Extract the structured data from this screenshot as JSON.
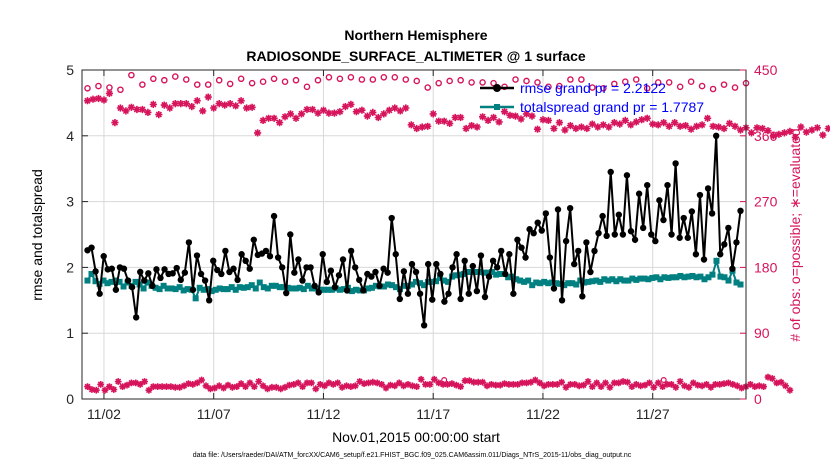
{
  "colors": {
    "rmse": "#000000",
    "spread": "#008080",
    "obs": "#d6145c",
    "legendText": "#0000ff",
    "grid": "#d8d8d8"
  },
  "chart_data": {
    "type": "line",
    "title_line1": "Northern Hemisphere",
    "title_line2": "RADIOSONDE_SURFACE_ALTIMETER @ 1 surface",
    "xlabel": "Nov.01,2015 00:00:00 start",
    "ylabel_left": "rmse and totalspread",
    "ylabel_right": "# of obs: o=possible; ∗=evaluated",
    "footnote": "data file: /Users/raeder/DAI/ATM_forcXX/CAM6_setup/f.e21.FHIST_BGC.f09_025.CAM6assim.011/Diags_NTrS_2015-11/obs_diag_output.nc",
    "x_range": [
      0.5,
      30.75
    ],
    "x_tick_values": [
      1.5,
      6.5,
      11.5,
      16.5,
      21.5,
      26.5
    ],
    "x_tick_labels": [
      "11/02",
      "11/07",
      "11/12",
      "11/17",
      "11/22",
      "11/27"
    ],
    "ylim_left": [
      0,
      5
    ],
    "y_ticks_left": [
      "0",
      "1",
      "2",
      "3",
      "4",
      "5"
    ],
    "ylim_right": [
      0,
      450
    ],
    "y_ticks_right": [
      "0",
      "90",
      "180",
      "270",
      "360",
      "450"
    ],
    "legend": {
      "rmse": "rmse grand pr = 2.2122",
      "spread": "totalspread grand pr = 1.7787"
    },
    "x_start": 0.75,
    "x_step": 0.25,
    "rmse": [
      2.26,
      2.3,
      1.94,
      1.6,
      2.17,
      1.97,
      1.98,
      1.66,
      2.0,
      1.98,
      1.8,
      1.7,
      1.24,
      1.93,
      1.8,
      1.91,
      1.72,
      1.97,
      1.84,
      1.97,
      1.9,
      1.91,
      1.99,
      1.81,
      1.92,
      2.38,
      1.66,
      2.18,
      1.9,
      1.8,
      1.5,
      2.1,
      1.96,
      1.9,
      2.25,
      1.93,
      1.98,
      1.81,
      2.2,
      2.1,
      1.98,
      2.42,
      2.19,
      2.21,
      2.25,
      2.17,
      2.78,
      2.15,
      2.0,
      1.61,
      2.5,
      1.92,
      2.12,
      1.8,
      2.0,
      2.0,
      1.72,
      1.62,
      2.2,
      1.78,
      1.95,
      1.7,
      1.88,
      2.12,
      1.65,
      2.25,
      2.0,
      1.81,
      1.65,
      1.9,
      1.86,
      1.93,
      1.72,
      1.98,
      1.92,
      2.75,
      2.2,
      1.52,
      1.94,
      1.6,
      2.05,
      1.93,
      1.6,
      1.12,
      2.05,
      1.51,
      2.05,
      1.9,
      1.48,
      1.6,
      2.0,
      2.2,
      1.52,
      2.1,
      1.6,
      2.02,
      1.64,
      2.18,
      1.55,
      1.86,
      2.1,
      2.0,
      2.25,
      1.9,
      2.2,
      1.6,
      2.42,
      2.3,
      2.15,
      2.58,
      2.52,
      2.68,
      2.56,
      2.82,
      2.15,
      1.68,
      2.88,
      1.5,
      2.4,
      2.9,
      2.05,
      2.25,
      1.56,
      2.38,
      1.93,
      2.25,
      2.52,
      2.78,
      2.48,
      3.45,
      2.5,
      2.8,
      2.5,
      3.4,
      2.55,
      2.42,
      3.12,
      2.6,
      3.25,
      2.5,
      2.4,
      3.02,
      2.72,
      3.25,
      2.5,
      3.58,
      2.45,
      2.75,
      2.45,
      2.85,
      2.2,
      3.1,
      2.12,
      3.2,
      2.82,
      4.0,
      2.2,
      2.35,
      2.6,
      1.98,
      2.38,
      2.86
    ],
    "spread": [
      1.8,
      1.9,
      1.79,
      1.75,
      1.8,
      1.76,
      1.78,
      1.8,
      1.78,
      1.71,
      1.77,
      1.72,
      1.78,
      1.74,
      1.68,
      1.77,
      1.72,
      1.69,
      1.67,
      1.72,
      1.68,
      1.68,
      1.67,
      1.7,
      1.65,
      1.67,
      1.66,
      1.53,
      1.69,
      1.66,
      1.67,
      1.64,
      1.66,
      1.68,
      1.67,
      1.67,
      1.7,
      1.66,
      1.7,
      1.69,
      1.7,
      1.73,
      1.68,
      1.77,
      1.7,
      1.68,
      1.72,
      1.72,
      1.7,
      1.7,
      1.69,
      1.68,
      1.68,
      1.69,
      1.67,
      1.72,
      1.68,
      1.68,
      1.66,
      1.66,
      1.66,
      1.66,
      1.68,
      1.66,
      1.67,
      1.69,
      1.64,
      1.66,
      1.65,
      1.65,
      1.68,
      1.69,
      1.72,
      1.71,
      1.71,
      1.74,
      1.73,
      1.7,
      1.67,
      1.72,
      1.72,
      1.74,
      1.78,
      1.76,
      1.73,
      1.78,
      1.78,
      1.79,
      1.84,
      1.8,
      1.78,
      1.86,
      1.88,
      1.89,
      1.9,
      1.93,
      1.93,
      1.93,
      1.93,
      1.92,
      1.92,
      1.93,
      1.89,
      1.9,
      1.9,
      1.85,
      1.86,
      1.82,
      1.8,
      1.78,
      1.8,
      1.73,
      1.77,
      1.76,
      1.78,
      1.76,
      1.77,
      1.76,
      1.75,
      1.73,
      1.76,
      1.76,
      1.74,
      1.8,
      1.77,
      1.78,
      1.79,
      1.8,
      1.78,
      1.82,
      1.8,
      1.82,
      1.79,
      1.82,
      1.8,
      1.8,
      1.83,
      1.81,
      1.83,
      1.83,
      1.82,
      1.84,
      1.85,
      1.82,
      1.85,
      1.84,
      1.85,
      1.85,
      1.87,
      1.85,
      1.86,
      1.87,
      1.85,
      1.86,
      1.82,
      1.85,
      1.89,
      2.1,
      1.86,
      1.85,
      1.8,
      1.95,
      1.77,
      1.74
    ],
    "obs_possible_x_start": 0.75,
    "obs_possible_x_step": 0.5,
    "obs_possible": [
      425,
      428,
      426,
      423,
      443,
      430,
      438,
      436,
      441,
      437,
      430,
      430,
      436,
      431,
      438,
      432,
      434,
      438,
      434,
      436,
      427,
      436,
      440,
      438,
      440,
      437,
      437,
      440,
      440,
      437,
      435,
      426,
      432,
      435,
      436,
      433,
      433,
      432,
      427,
      437,
      435,
      433,
      427,
      428,
      437,
      437,
      426,
      425,
      431,
      434,
      437,
      425,
      433,
      433,
      427,
      434,
      428,
      424,
      430,
      426,
      432
    ],
    "obs_evaluated_x_start": 0.75,
    "obs_evaluated_x_step": 0.5,
    "obs_evaluated": [
      408,
      410,
      411,
      409,
      418,
      378,
      398,
      394,
      399,
      396,
      396,
      392,
      403,
      389,
      402,
      398,
      404,
      404,
      404,
      400,
      408,
      394,
      413,
      398,
      404,
      402,
      404,
      401,
      408,
      398,
      399,
      364,
      381,
      384,
      384,
      378,
      386,
      390,
      384,
      390,
      396,
      396,
      391,
      395,
      391,
      391,
      393,
      400,
      403,
      393,
      395,
      387,
      392,
      385,
      390,
      395,
      398,
      394,
      398,
      375,
      370,
      372,
      373,
      390,
      380,
      380,
      377,
      385,
      385,
      370,
      374,
      372,
      386,
      381,
      385,
      379,
      393,
      388,
      387,
      383,
      390,
      387,
      369,
      382,
      381,
      370,
      378,
      368,
      374,
      370,
      372,
      370,
      376,
      372,
      375,
      372,
      378,
      376,
      381,
      375,
      379,
      382,
      384,
      376,
      375,
      378,
      373,
      378,
      373,
      374,
      369,
      373,
      375,
      384,
      373,
      372,
      370,
      377,
      373,
      368,
      371,
      364,
      371,
      370,
      367,
      360,
      362,
      364,
      366,
      358,
      372,
      365,
      368,
      371,
      361,
      370,
      364,
      372,
      370,
      374,
      364,
      376,
      368,
      362,
      374,
      370,
      363,
      369,
      366,
      374,
      380,
      364,
      370,
      372,
      369,
      361,
      366,
      364,
      367,
      373,
      374
    ],
    "low_possible_x": [
      17.0,
      27.0
    ],
    "low_possible": [
      26,
      26
    ],
    "low_evaluated": [
      17,
      13,
      12,
      20,
      12,
      17,
      13,
      24,
      17,
      19,
      22,
      22,
      20,
      24,
      12,
      17,
      17,
      17,
      17,
      17,
      16,
      16,
      18,
      21,
      20,
      22,
      26,
      18,
      14,
      15,
      18,
      15,
      19,
      16,
      17,
      21,
      17,
      22,
      17,
      24,
      18,
      14,
      16,
      16,
      14,
      16,
      19,
      20,
      22,
      17,
      22,
      22,
      14,
      20,
      18,
      22,
      20,
      22,
      16,
      18,
      17,
      18,
      24,
      21,
      22,
      23,
      22,
      20,
      15,
      19,
      18,
      22,
      18,
      20,
      18,
      17,
      27,
      20,
      20,
      27,
      22,
      20,
      20,
      21,
      19,
      17,
      25,
      25,
      23,
      23,
      23,
      18,
      20,
      19,
      19,
      21,
      20,
      20,
      20,
      22,
      22,
      23,
      26,
      22,
      18,
      20,
      20,
      20,
      23,
      16,
      20,
      20,
      18,
      19,
      24,
      17,
      22,
      17,
      22,
      16,
      22,
      22,
      24,
      23,
      17,
      20,
      18,
      19,
      22,
      16,
      22,
      17,
      20,
      20,
      16,
      24,
      18,
      16,
      22,
      19,
      18,
      20,
      16,
      20,
      20,
      21,
      22,
      20,
      18,
      15,
      17,
      20,
      17,
      18,
      17,
      30,
      28,
      22,
      23,
      18,
      12
    ]
  }
}
